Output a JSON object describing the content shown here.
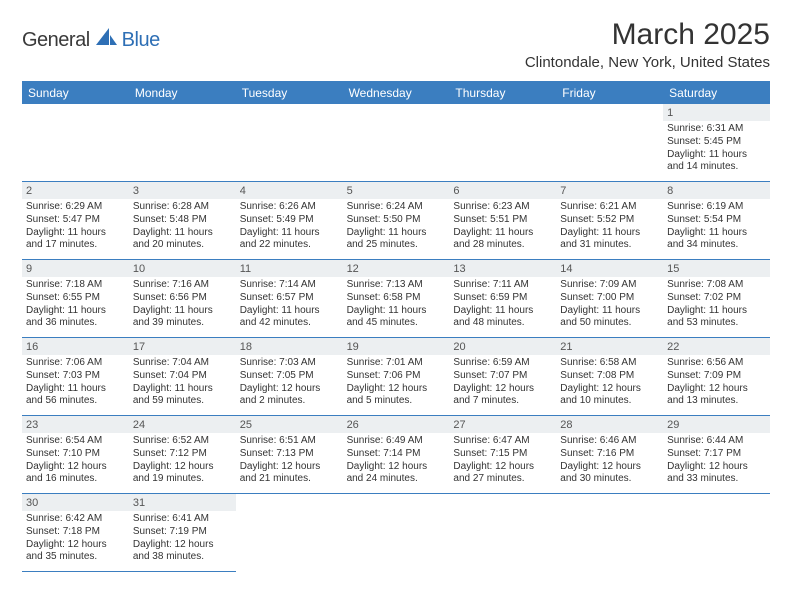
{
  "logo": {
    "general": "General",
    "blue": "Blue"
  },
  "title": "March 2025",
  "location": "Clintondale, New York, United States",
  "daynames": [
    "Sunday",
    "Monday",
    "Tuesday",
    "Wednesday",
    "Thursday",
    "Friday",
    "Saturday"
  ],
  "colors": {
    "header_bg": "#3b7ec0",
    "daynum_bg": "#eceff1"
  },
  "cells": [
    {
      "blank": true
    },
    {
      "blank": true
    },
    {
      "blank": true
    },
    {
      "blank": true
    },
    {
      "blank": true
    },
    {
      "blank": true
    },
    {
      "n": "1",
      "sr": "6:31 AM",
      "ss": "5:45 PM",
      "dl": "11 hours and 14 minutes."
    },
    {
      "n": "2",
      "sr": "6:29 AM",
      "ss": "5:47 PM",
      "dl": "11 hours and 17 minutes."
    },
    {
      "n": "3",
      "sr": "6:28 AM",
      "ss": "5:48 PM",
      "dl": "11 hours and 20 minutes."
    },
    {
      "n": "4",
      "sr": "6:26 AM",
      "ss": "5:49 PM",
      "dl": "11 hours and 22 minutes."
    },
    {
      "n": "5",
      "sr": "6:24 AM",
      "ss": "5:50 PM",
      "dl": "11 hours and 25 minutes."
    },
    {
      "n": "6",
      "sr": "6:23 AM",
      "ss": "5:51 PM",
      "dl": "11 hours and 28 minutes."
    },
    {
      "n": "7",
      "sr": "6:21 AM",
      "ss": "5:52 PM",
      "dl": "11 hours and 31 minutes."
    },
    {
      "n": "8",
      "sr": "6:19 AM",
      "ss": "5:54 PM",
      "dl": "11 hours and 34 minutes."
    },
    {
      "n": "9",
      "sr": "7:18 AM",
      "ss": "6:55 PM",
      "dl": "11 hours and 36 minutes."
    },
    {
      "n": "10",
      "sr": "7:16 AM",
      "ss": "6:56 PM",
      "dl": "11 hours and 39 minutes."
    },
    {
      "n": "11",
      "sr": "7:14 AM",
      "ss": "6:57 PM",
      "dl": "11 hours and 42 minutes."
    },
    {
      "n": "12",
      "sr": "7:13 AM",
      "ss": "6:58 PM",
      "dl": "11 hours and 45 minutes."
    },
    {
      "n": "13",
      "sr": "7:11 AM",
      "ss": "6:59 PM",
      "dl": "11 hours and 48 minutes."
    },
    {
      "n": "14",
      "sr": "7:09 AM",
      "ss": "7:00 PM",
      "dl": "11 hours and 50 minutes."
    },
    {
      "n": "15",
      "sr": "7:08 AM",
      "ss": "7:02 PM",
      "dl": "11 hours and 53 minutes."
    },
    {
      "n": "16",
      "sr": "7:06 AM",
      "ss": "7:03 PM",
      "dl": "11 hours and 56 minutes."
    },
    {
      "n": "17",
      "sr": "7:04 AM",
      "ss": "7:04 PM",
      "dl": "11 hours and 59 minutes."
    },
    {
      "n": "18",
      "sr": "7:03 AM",
      "ss": "7:05 PM",
      "dl": "12 hours and 2 minutes."
    },
    {
      "n": "19",
      "sr": "7:01 AM",
      "ss": "7:06 PM",
      "dl": "12 hours and 5 minutes."
    },
    {
      "n": "20",
      "sr": "6:59 AM",
      "ss": "7:07 PM",
      "dl": "12 hours and 7 minutes."
    },
    {
      "n": "21",
      "sr": "6:58 AM",
      "ss": "7:08 PM",
      "dl": "12 hours and 10 minutes."
    },
    {
      "n": "22",
      "sr": "6:56 AM",
      "ss": "7:09 PM",
      "dl": "12 hours and 13 minutes."
    },
    {
      "n": "23",
      "sr": "6:54 AM",
      "ss": "7:10 PM",
      "dl": "12 hours and 16 minutes."
    },
    {
      "n": "24",
      "sr": "6:52 AM",
      "ss": "7:12 PM",
      "dl": "12 hours and 19 minutes."
    },
    {
      "n": "25",
      "sr": "6:51 AM",
      "ss": "7:13 PM",
      "dl": "12 hours and 21 minutes."
    },
    {
      "n": "26",
      "sr": "6:49 AM",
      "ss": "7:14 PM",
      "dl": "12 hours and 24 minutes."
    },
    {
      "n": "27",
      "sr": "6:47 AM",
      "ss": "7:15 PM",
      "dl": "12 hours and 27 minutes."
    },
    {
      "n": "28",
      "sr": "6:46 AM",
      "ss": "7:16 PM",
      "dl": "12 hours and 30 minutes."
    },
    {
      "n": "29",
      "sr": "6:44 AM",
      "ss": "7:17 PM",
      "dl": "12 hours and 33 minutes."
    },
    {
      "n": "30",
      "sr": "6:42 AM",
      "ss": "7:18 PM",
      "dl": "12 hours and 35 minutes."
    },
    {
      "n": "31",
      "sr": "6:41 AM",
      "ss": "7:19 PM",
      "dl": "12 hours and 38 minutes."
    },
    {
      "blank": true,
      "noborder": true
    },
    {
      "blank": true,
      "noborder": true
    },
    {
      "blank": true,
      "noborder": true
    },
    {
      "blank": true,
      "noborder": true
    },
    {
      "blank": true,
      "noborder": true
    }
  ],
  "labels": {
    "sunrise": "Sunrise:",
    "sunset": "Sunset:",
    "daylight": "Daylight:"
  }
}
